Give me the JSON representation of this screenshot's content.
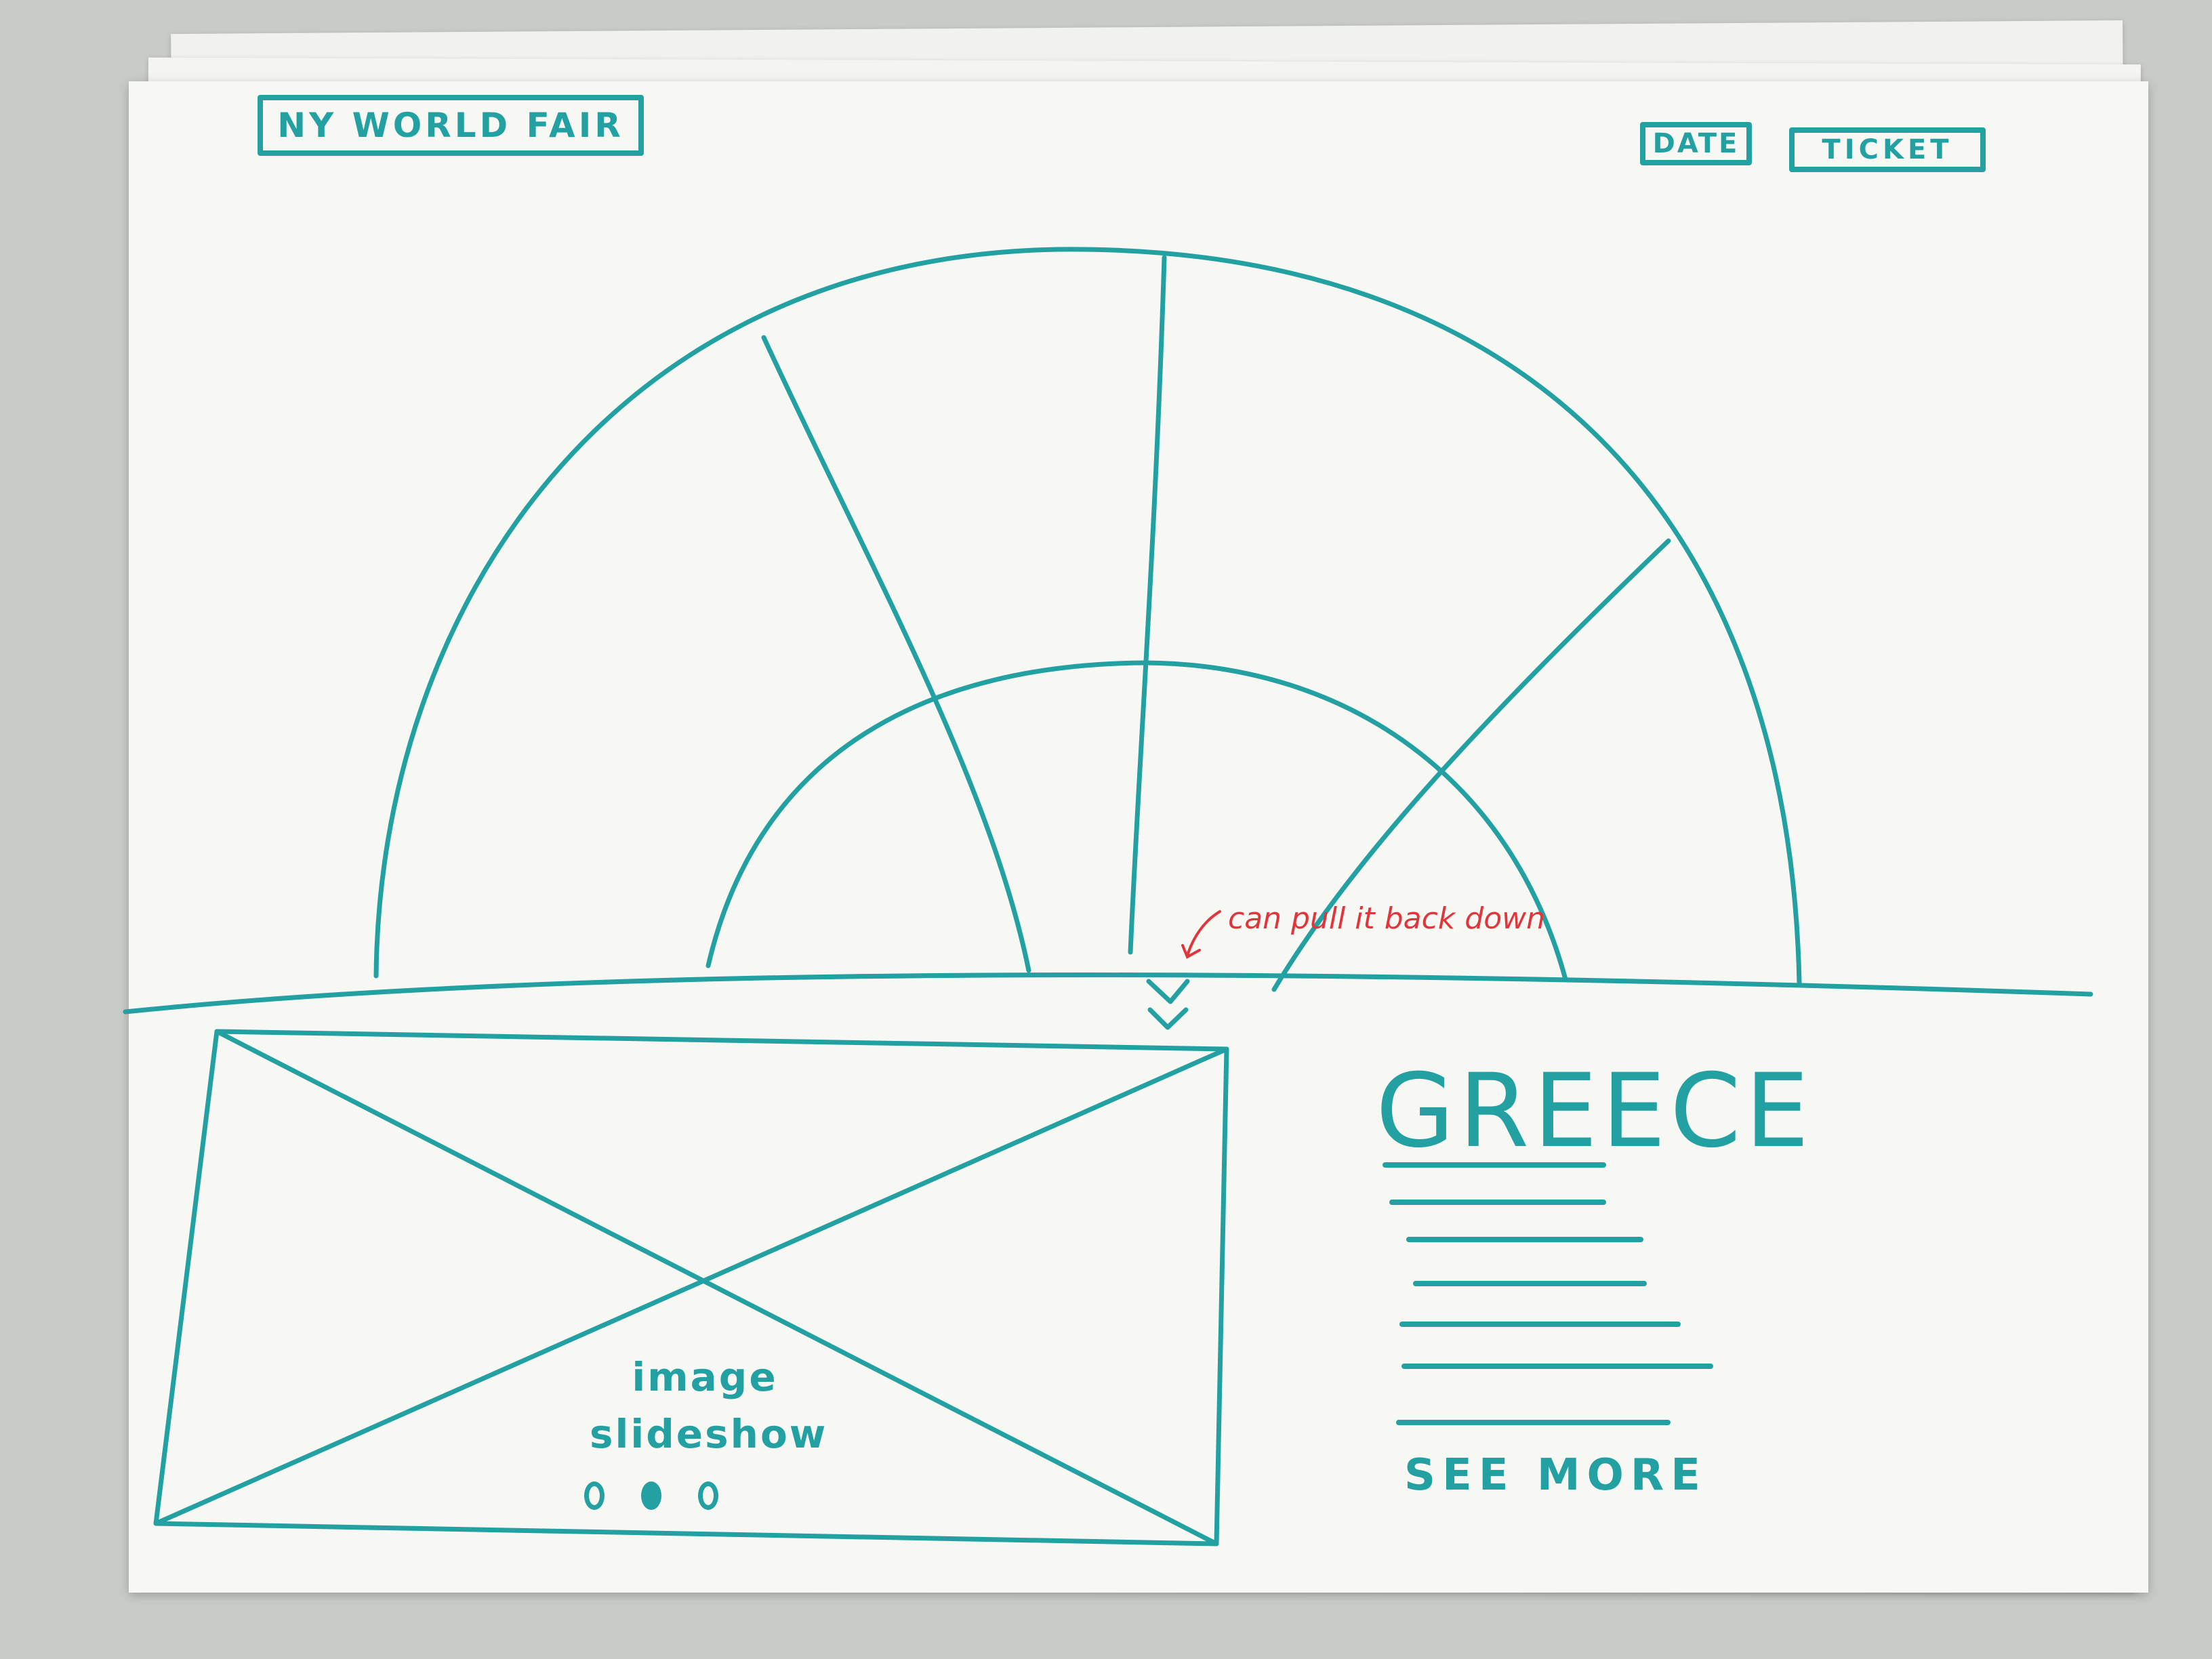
{
  "header": {
    "site_title": "NY WORLD FAIR",
    "nav": {
      "date_label": "DATE",
      "ticket_label": "TICKET"
    }
  },
  "hero": {
    "annotation": "can pull it back down",
    "scroll_icon": "chevron-down-icon"
  },
  "slideshow": {
    "caption_line1": "image",
    "caption_line2": "slideshow",
    "dots": [
      {
        "active": false
      },
      {
        "active": true
      },
      {
        "active": false
      }
    ]
  },
  "feature": {
    "heading": "GREECE",
    "see_more_label": "SEE MORE"
  },
  "colors": {
    "ink": "#22a0a2",
    "annotation": "#e0353b",
    "paper": "#f7f7f4"
  }
}
